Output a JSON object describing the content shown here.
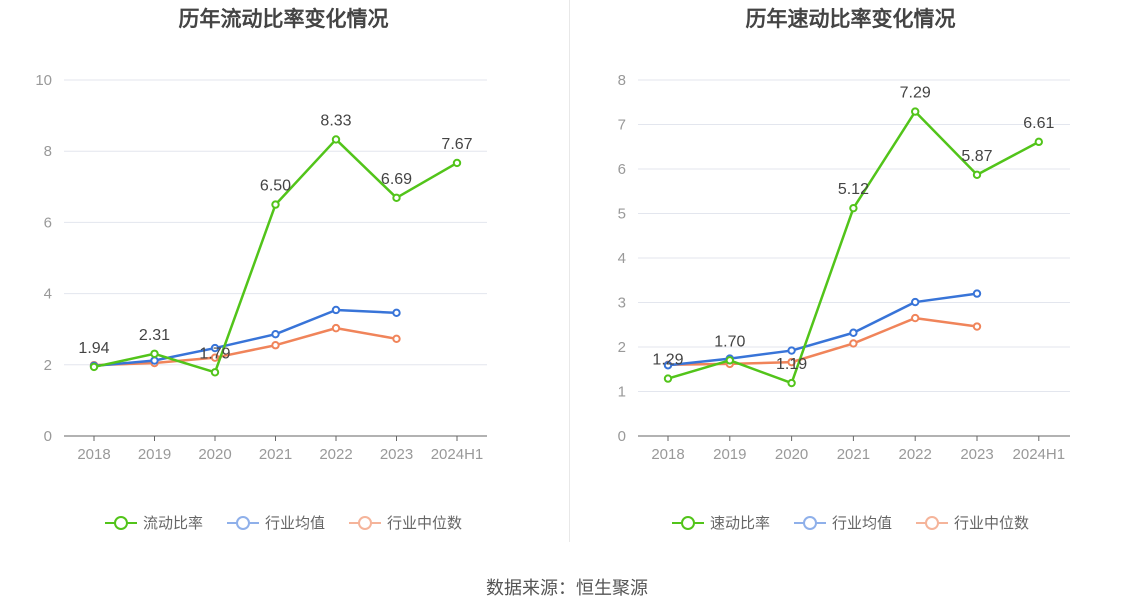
{
  "footer": {
    "source": "数据来源：恒生聚源"
  },
  "chart_data": [
    {
      "type": "line",
      "title": "历年流动比率变化情况",
      "categories": [
        "2018",
        "2019",
        "2020",
        "2021",
        "2022",
        "2023",
        "2024H1"
      ],
      "yticks": [
        0,
        2,
        4,
        6,
        8,
        10
      ],
      "ylim": [
        0,
        10
      ],
      "grid": true,
      "legend_position": "bottom",
      "series": [
        {
          "name": "流动比率",
          "color": "#52c41a",
          "values": [
            1.94,
            2.31,
            1.79,
            6.5,
            8.33,
            6.69,
            7.67
          ],
          "labels": [
            "1.94",
            "2.31",
            "1.79",
            "6.50",
            "8.33",
            "6.69",
            "7.67"
          ]
        },
        {
          "name": "行业均值",
          "color": "#3874d8",
          "values": [
            1.97,
            2.12,
            2.47,
            2.86,
            3.54,
            3.46,
            null
          ]
        },
        {
          "name": "行业中位数",
          "color": "#f0845a",
          "values": [
            1.99,
            2.05,
            2.2,
            2.55,
            3.03,
            2.73,
            null
          ]
        }
      ]
    },
    {
      "type": "line",
      "title": "历年速动比率变化情况",
      "categories": [
        "2018",
        "2019",
        "2020",
        "2021",
        "2022",
        "2023",
        "2024H1"
      ],
      "yticks": [
        0,
        1,
        2,
        3,
        4,
        5,
        6,
        7,
        8
      ],
      "ylim": [
        0,
        8
      ],
      "grid": true,
      "legend_position": "bottom",
      "series": [
        {
          "name": "速动比率",
          "color": "#52c41a",
          "values": [
            1.29,
            1.7,
            1.19,
            5.12,
            7.29,
            5.87,
            6.61
          ],
          "labels": [
            "1.29",
            "1.70",
            "1.19",
            "5.12",
            "7.29",
            "5.87",
            "6.61"
          ]
        },
        {
          "name": "行业均值",
          "color": "#3874d8",
          "values": [
            1.59,
            1.74,
            1.92,
            2.32,
            3.01,
            3.2,
            null
          ]
        },
        {
          "name": "行业中位数",
          "color": "#f0845a",
          "values": [
            1.6,
            1.62,
            1.66,
            2.08,
            2.65,
            2.46,
            null
          ]
        }
      ]
    }
  ]
}
